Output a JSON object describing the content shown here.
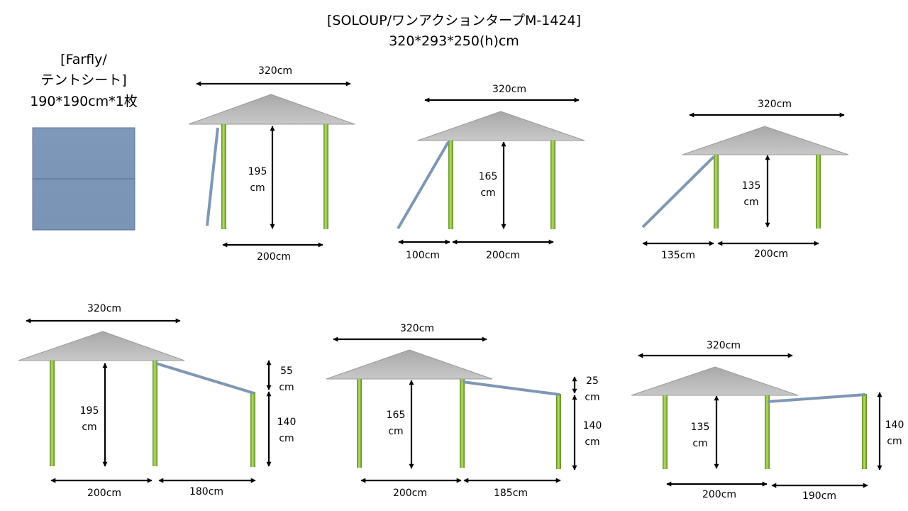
{
  "header": {
    "title": "[SOLOUP/ワンアクションタープM-1424]",
    "size": "320*293*250(h)cm"
  },
  "sheet": {
    "line1": "[Farfly/",
    "line2": "テントシート]",
    "line3": "190*190cm*1枚",
    "color": "#7f99bb"
  },
  "colors": {
    "roof": "#bdbdbd",
    "pole": "#8ab83c",
    "side_pole": "#7f97b3"
  },
  "setups": [
    {
      "width": "320cm",
      "height_a": "195",
      "height_b": "cm",
      "base": "200cm"
    },
    {
      "width": "320cm",
      "height_a": "165",
      "height_b": "cm",
      "left": "100cm",
      "base": "200cm"
    },
    {
      "width": "320cm",
      "height_a": "135",
      "height_b": "cm",
      "left": "135cm",
      "base": "200cm"
    },
    {
      "width": "320cm",
      "height_a": "195",
      "height_b": "cm",
      "base": "200cm",
      "ext": "180cm",
      "drop_a": "55",
      "drop_b": "cm",
      "side_a": "140",
      "side_b": "cm"
    },
    {
      "width": "320cm",
      "height_a": "165",
      "height_b": "cm",
      "base": "200cm",
      "ext": "185cm",
      "drop_a": "25",
      "drop_b": "cm",
      "side_a": "140",
      "side_b": "cm"
    },
    {
      "width": "320cm",
      "height_a": "135",
      "height_b": "cm",
      "base": "200cm",
      "ext": "190cm",
      "side_a": "140",
      "side_b": "cm"
    }
  ]
}
